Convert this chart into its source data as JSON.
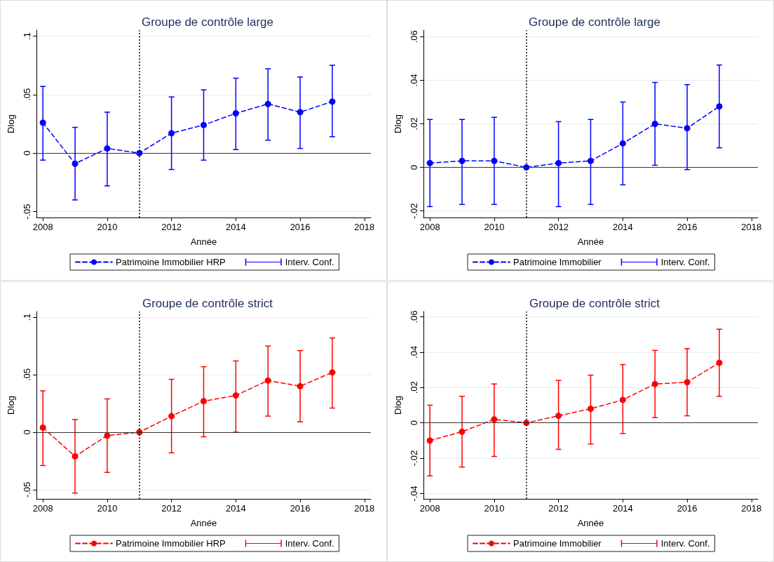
{
  "chart_data": [
    {
      "type": "line",
      "title": "Groupe de contrôle large",
      "xlabel": "Année",
      "ylabel": "Dlog",
      "x": [
        2008,
        2009,
        2010,
        2011,
        2012,
        2013,
        2014,
        2015,
        2016,
        2017
      ],
      "series": [
        {
          "name": "Patrimoine Immobilier HRP",
          "color": "#0000ff",
          "marker": "circle",
          "line_style": "dashed",
          "values": [
            0.026,
            -0.009,
            0.004,
            0,
            0.017,
            0.024,
            0.034,
            0.042,
            0.035,
            0.044
          ],
          "errors": [
            [
              -0.006,
              0.057
            ],
            [
              -0.04,
              0.022
            ],
            [
              -0.028,
              0.035
            ],
            null,
            [
              -0.014,
              0.048
            ],
            [
              -0.006,
              0.054
            ],
            [
              0.003,
              0.064
            ],
            [
              0.011,
              0.072
            ],
            [
              0.004,
              0.065
            ],
            [
              0.014,
              0.075
            ]
          ]
        },
        {
          "name": "Interv. Conf.",
          "color": "#0000ff",
          "values": [
            null,
            null,
            null,
            null,
            null,
            null,
            null,
            null,
            null,
            null
          ]
        }
      ],
      "xlim": [
        2007.8,
        2018.2
      ],
      "xticks": [
        2008,
        2010,
        2012,
        2014,
        2016,
        2018
      ],
      "ylim": [
        -0.055,
        0.105
      ],
      "yticks": [
        {
          "value": -0.05,
          "label": "-.05"
        },
        {
          "value": 0,
          "label": "0"
        },
        {
          "value": 0.05,
          "label": ".05"
        },
        {
          "value": 0.1,
          "label": ".1"
        }
      ],
      "ref_lines": [
        {
          "axis": "x",
          "value": 2011,
          "color": "#000000",
          "line_style": "dotted"
        },
        {
          "axis": "y",
          "value": 0,
          "color": "#333333",
          "line_style": "solid"
        }
      ],
      "grid": "y",
      "legend": "bottom"
    },
    {
      "type": "line",
      "title": "Groupe de contrôle large",
      "xlabel": "Année",
      "ylabel": "Dlog",
      "x": [
        2008,
        2009,
        2010,
        2011,
        2012,
        2013,
        2014,
        2015,
        2016,
        2017
      ],
      "series": [
        {
          "name": "Patrimoine Immobilier",
          "color": "#0000ff",
          "marker": "circle",
          "line_style": "dashed",
          "values": [
            0.002,
            0.003,
            0.003,
            0,
            0.002,
            0.003,
            0.011,
            0.02,
            0.018,
            0.028
          ],
          "errors": [
            [
              -0.018,
              0.022
            ],
            [
              -0.017,
              0.022
            ],
            [
              -0.017,
              0.023
            ],
            null,
            [
              -0.018,
              0.021
            ],
            [
              -0.017,
              0.022
            ],
            [
              -0.008,
              0.03
            ],
            [
              0.001,
              0.039
            ],
            [
              -0.001,
              0.038
            ],
            [
              0.009,
              0.047
            ]
          ]
        },
        {
          "name": "Interv. Conf.",
          "color": "#0000ff",
          "values": [
            null,
            null,
            null,
            null,
            null,
            null,
            null,
            null,
            null,
            null
          ]
        }
      ],
      "xlim": [
        2007.8,
        2018.2
      ],
      "xticks": [
        2008,
        2010,
        2012,
        2014,
        2016,
        2018
      ],
      "ylim": [
        -0.023,
        0.063
      ],
      "yticks": [
        {
          "value": -0.02,
          "label": "-.02"
        },
        {
          "value": 0,
          "label": "0"
        },
        {
          "value": 0.02,
          "label": ".02"
        },
        {
          "value": 0.04,
          "label": ".04"
        },
        {
          "value": 0.06,
          "label": ".06"
        }
      ],
      "ref_lines": [
        {
          "axis": "x",
          "value": 2011,
          "color": "#000000",
          "line_style": "dotted"
        },
        {
          "axis": "y",
          "value": 0,
          "color": "#333333",
          "line_style": "solid"
        }
      ],
      "grid": "y",
      "legend": "bottom"
    },
    {
      "type": "line",
      "title": "Groupe de contrôle strict",
      "xlabel": "Année",
      "ylabel": "Dlog",
      "x": [
        2008,
        2009,
        2010,
        2011,
        2012,
        2013,
        2014,
        2015,
        2016,
        2017
      ],
      "series": [
        {
          "name": "Patrimoine Immobilier HRP",
          "color": "#ff0000",
          "marker": "circle",
          "line_style": "dashed",
          "values": [
            0.004,
            -0.021,
            -0.003,
            0,
            0.014,
            0.027,
            0.032,
            0.045,
            0.04,
            0.052
          ],
          "errors": [
            [
              -0.029,
              0.036
            ],
            [
              -0.053,
              0.011
            ],
            [
              -0.035,
              0.029
            ],
            null,
            [
              -0.018,
              0.046
            ],
            [
              -0.004,
              0.057
            ],
            [
              0.0,
              0.062
            ],
            [
              0.014,
              0.075
            ],
            [
              0.009,
              0.071
            ],
            [
              0.021,
              0.082
            ]
          ]
        },
        {
          "name": "Interv. Conf.",
          "color": "#ff0000",
          "values": [
            null,
            null,
            null,
            null,
            null,
            null,
            null,
            null,
            null,
            null
          ]
        }
      ],
      "xlim": [
        2007.8,
        2018.2
      ],
      "xticks": [
        2008,
        2010,
        2012,
        2014,
        2016,
        2018
      ],
      "ylim": [
        -0.058,
        0.105
      ],
      "yticks": [
        {
          "value": -0.05,
          "label": "-.05"
        },
        {
          "value": 0,
          "label": "0"
        },
        {
          "value": 0.05,
          "label": ".05"
        },
        {
          "value": 0.1,
          "label": ".1"
        }
      ],
      "ref_lines": [
        {
          "axis": "x",
          "value": 2011,
          "color": "#000000",
          "line_style": "dotted"
        },
        {
          "axis": "y",
          "value": 0,
          "color": "#333333",
          "line_style": "solid"
        }
      ],
      "grid": "y",
      "legend": "bottom"
    },
    {
      "type": "line",
      "title": "Groupe de contrôle strict",
      "xlabel": "Année",
      "ylabel": "Dlog",
      "x": [
        2008,
        2009,
        2010,
        2011,
        2012,
        2013,
        2014,
        2015,
        2016,
        2017
      ],
      "series": [
        {
          "name": "Patrimoine Immobilier",
          "color": "#ff0000",
          "marker": "circle",
          "line_style": "dashed",
          "values": [
            -0.01,
            -0.005,
            0.002,
            0,
            0.004,
            0.008,
            0.013,
            0.022,
            0.023,
            0.034
          ],
          "errors": [
            [
              -0.03,
              0.01
            ],
            [
              -0.025,
              0.015
            ],
            [
              -0.019,
              0.022
            ],
            null,
            [
              -0.015,
              0.024
            ],
            [
              -0.012,
              0.027
            ],
            [
              -0.006,
              0.033
            ],
            [
              0.003,
              0.041
            ],
            [
              0.004,
              0.042
            ],
            [
              0.015,
              0.053
            ]
          ]
        },
        {
          "name": "Interv. Conf.",
          "color": "#ff0000",
          "values": [
            null,
            null,
            null,
            null,
            null,
            null,
            null,
            null,
            null,
            null
          ]
        }
      ],
      "xlim": [
        2007.8,
        2018.2
      ],
      "xticks": [
        2008,
        2010,
        2012,
        2014,
        2016,
        2018
      ],
      "ylim": [
        -0.043,
        0.063
      ],
      "yticks": [
        {
          "value": -0.04,
          "label": "-.04"
        },
        {
          "value": -0.02,
          "label": "-.02"
        },
        {
          "value": 0,
          "label": "0"
        },
        {
          "value": 0.02,
          "label": ".02"
        },
        {
          "value": 0.04,
          "label": ".04"
        },
        {
          "value": 0.06,
          "label": ".06"
        }
      ],
      "ref_lines": [
        {
          "axis": "x",
          "value": 2011,
          "color": "#000000",
          "line_style": "dotted"
        },
        {
          "axis": "y",
          "value": 0,
          "color": "#333333",
          "line_style": "solid"
        }
      ],
      "grid": "y",
      "legend": "bottom"
    }
  ]
}
